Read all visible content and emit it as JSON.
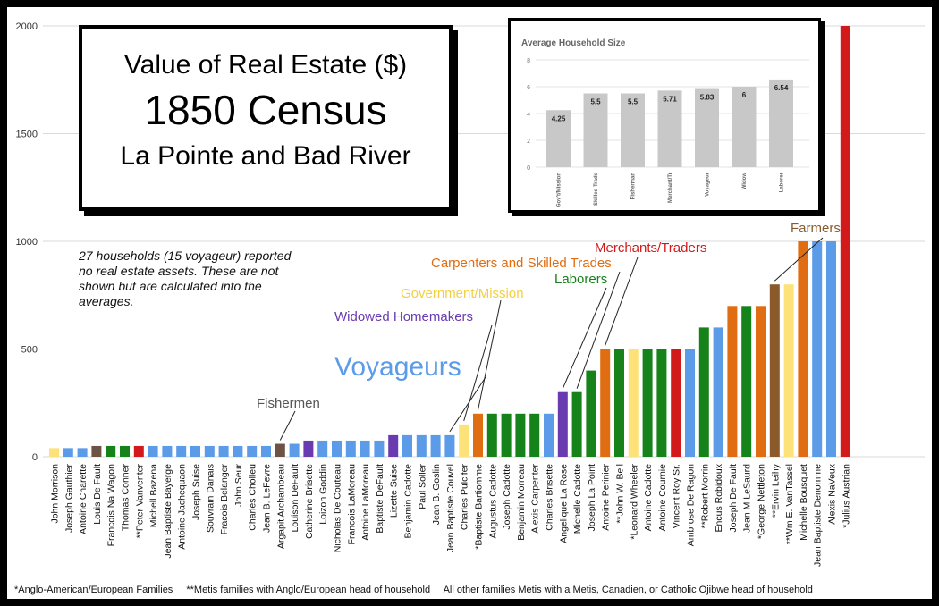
{
  "title": {
    "line1": "Value of Real Estate ($)",
    "line2": "1850 Census",
    "line3": "La Pointe and Bad River"
  },
  "note": "27 households (15 voyageur) reported no real estate assets. These are not shown but are calculated into the averages.",
  "footer": {
    "anglo": "*Anglo-American/European Families",
    "metis_anglo": "**Metis families with Anglo/European head of household",
    "other": "All other families Metis with a Metis, Canadien, or Catholic Ojibwe head of household"
  },
  "colors": {
    "voyageur": "#5b9be8",
    "government": "#fde27a",
    "fisherman": "#6d5345",
    "widow": "#6a3ab0",
    "skilled": "#e06d12",
    "laborer": "#16821a",
    "merchant": "#d21a1a",
    "farmer": "#8b5a2b"
  },
  "chart_data": {
    "type": "bar",
    "ylim": [
      0,
      2000
    ],
    "yticks": [
      "0",
      "500",
      "1000",
      "1500",
      "2000"
    ],
    "groups": [
      {
        "key": "voyageur",
        "label": "Voyageurs"
      },
      {
        "key": "fisherman",
        "label": "Fishermen"
      },
      {
        "key": "widow",
        "label": "Widowed Homemakers"
      },
      {
        "key": "government",
        "label": "Government/Mission"
      },
      {
        "key": "laborer",
        "label": "Laborers"
      },
      {
        "key": "skilled",
        "label": "Carpenters and Skilled Trades"
      },
      {
        "key": "merchant",
        "label": "Merchants/Traders"
      },
      {
        "key": "farmer",
        "label": "Farmers"
      }
    ],
    "categories": [
      "John Morrison",
      "Joseph Gauthier",
      "Antoine Charette",
      "Louis De Fault",
      "Francois Na Wagon",
      "Thomas Conner",
      "**Peter Vanventer",
      "Michell Bazena",
      "Jean Baptiste Bayerge",
      "Antoine Jachequaon",
      "Joseph Suise",
      "Souvrain Danais",
      "Fracois Belanger",
      "John Seur",
      "Charles Cholieu",
      "Jean B. LeFevre",
      "Argapit Archambeau",
      "Louison DeFault",
      "Catherine Brisette",
      "Loizon Goddin",
      "Nicholas De Couteau",
      "Francois LaMoreau",
      "Antoine LaMoreau",
      "Baptiste DeFault",
      "Lizette Suise",
      "Benjamin Cadotte",
      "Paul Soller",
      "Jean B. Goslin",
      "Jean Baptiste Couvel",
      "Charles Pulcifer",
      "*Baptiste Bartiomme",
      "Augustus Cadotte",
      "Joseph Cadotte",
      "Benjamin Morreau",
      "Alexis Carpenter",
      "Charles Brisette",
      "Angelique La Rose",
      "Michelle Cadotte",
      "Joseph La Point",
      "Antoine Perinier",
      "**John W. Bell",
      "*Leonard Wheeler",
      "Antoine Cadotte",
      "Antoine Cournie",
      "Vincent Roy Sr.",
      "Ambrose De Ragon",
      "**Robert Morrin",
      "Encus Robidoux",
      "Joseph De Fault",
      "Jean M LeSaurd",
      "*George Nettleton",
      "**Ervin Leihy",
      "**Wm E. VanTassel",
      "Michelle Bousquet",
      "Jean Baptiste Denomme",
      "Alexis NaVeux",
      "*Julius Austrian"
    ],
    "values": [
      40,
      40,
      40,
      50,
      50,
      50,
      50,
      50,
      50,
      50,
      50,
      50,
      50,
      50,
      50,
      50,
      60,
      60,
      75,
      75,
      75,
      75,
      75,
      75,
      100,
      100,
      100,
      100,
      100,
      150,
      200,
      200,
      200,
      200,
      200,
      200,
      300,
      300,
      400,
      500,
      500,
      500,
      500,
      500,
      500,
      500,
      600,
      600,
      700,
      700,
      700,
      800,
      800,
      1000,
      1000,
      1000,
      2000
    ],
    "bar_groups": [
      "government",
      "voyageur",
      "voyageur",
      "fisherman",
      "laborer",
      "laborer",
      "merchant",
      "voyageur",
      "voyageur",
      "voyageur",
      "voyageur",
      "voyageur",
      "voyageur",
      "voyageur",
      "voyageur",
      "voyageur",
      "fisherman",
      "voyageur",
      "widow",
      "voyageur",
      "voyageur",
      "voyageur",
      "voyageur",
      "voyageur",
      "widow",
      "voyageur",
      "voyageur",
      "voyageur",
      "voyageur",
      "government",
      "skilled",
      "laborer",
      "laborer",
      "laborer",
      "laborer",
      "voyageur",
      "widow",
      "laborer",
      "laborer",
      "skilled",
      "laborer",
      "government",
      "laborer",
      "laborer",
      "merchant",
      "voyageur",
      "laborer",
      "voyageur",
      "skilled",
      "laborer",
      "skilled",
      "farmer",
      "government",
      "skilled",
      "voyageur",
      "voyageur",
      "merchant"
    ],
    "inset": {
      "type": "bar",
      "title": "Average Household Size",
      "ylim": [
        0,
        8
      ],
      "yticks": [
        "0",
        "2",
        "4",
        "6",
        "8"
      ],
      "categories": [
        "Gov't/Mission",
        "Skilled Trade",
        "Fisherman",
        "Merchant/Tr",
        "Voyageur",
        "Widow",
        "Laborer"
      ],
      "values": [
        4.25,
        5.5,
        5.5,
        5.71,
        5.83,
        6,
        6.54
      ],
      "value_labels": [
        "4.25",
        "5.5",
        "5.5",
        "5.71",
        "5.83",
        "6",
        "6.54"
      ]
    }
  }
}
